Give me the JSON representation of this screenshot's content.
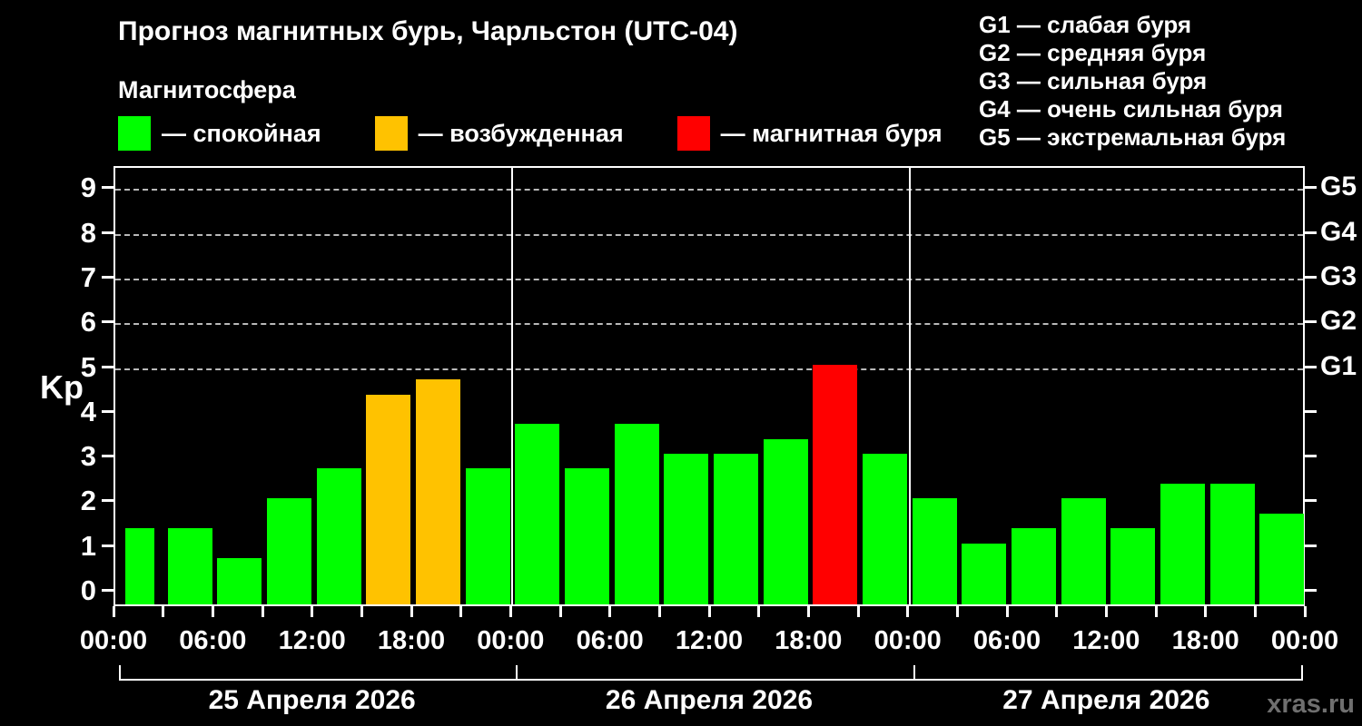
{
  "header": {
    "title": "Прогноз магнитных бурь, Чарльстон (UTC-04)",
    "subtitle": "Магнитосфера",
    "legend": [
      {
        "key": "quiet",
        "label": "— спокойная",
        "color": "#00ff00"
      },
      {
        "key": "excited",
        "label": "— возбужденная",
        "color": "#ffc200"
      },
      {
        "key": "storm",
        "label": "— магнитная буря",
        "color": "#ff0000"
      }
    ],
    "g_legend": [
      "G1 — слабая буря",
      "G2 — средняя буря",
      "G3 — сильная буря",
      "G4 — очень сильная буря",
      "G5 — экстремальная буря"
    ]
  },
  "watermark": "xras.ru",
  "chart_data": {
    "type": "bar",
    "title": "Прогноз магнитных бурь, Чарльстон (UTC-04)",
    "ylabel": "Kp",
    "ylim": [
      -0.37,
      9.53
    ],
    "yticks": [
      0,
      1,
      2,
      3,
      4,
      5,
      6,
      7,
      8,
      9
    ],
    "gridlines_dashed_at": [
      5,
      6,
      7,
      8,
      9
    ],
    "right_axis_labels": [
      {
        "kp": 5,
        "label": "G1"
      },
      {
        "kp": 6,
        "label": "G2"
      },
      {
        "kp": 7,
        "label": "G3"
      },
      {
        "kp": 8,
        "label": "G4"
      },
      {
        "kp": 9,
        "label": "G5"
      }
    ],
    "bar_interval_hours": 3,
    "time_tick_labels": [
      "00:00",
      "06:00",
      "12:00",
      "18:00"
    ],
    "final_time_label": "00:00",
    "color_rules": {
      "quiet_below": 4,
      "storm_at_or_above": 5
    },
    "colors": {
      "quiet": "#00ff00",
      "excited": "#ffc200",
      "storm": "#ff0000"
    },
    "days": [
      {
        "date": "25 Апреля 2026",
        "values": [
          1.33,
          1.33,
          0.67,
          2.0,
          2.67,
          4.33,
          4.67,
          2.67
        ]
      },
      {
        "date": "26 Апреля 2026",
        "values": [
          3.67,
          2.67,
          3.67,
          3.0,
          3.0,
          3.33,
          5.0,
          3.0
        ]
      },
      {
        "date": "27 Апреля 2026",
        "values": [
          2.0,
          1.0,
          1.33,
          2.0,
          1.33,
          2.33,
          2.33,
          1.67
        ]
      }
    ],
    "partial_last_bar": 1.33
  }
}
